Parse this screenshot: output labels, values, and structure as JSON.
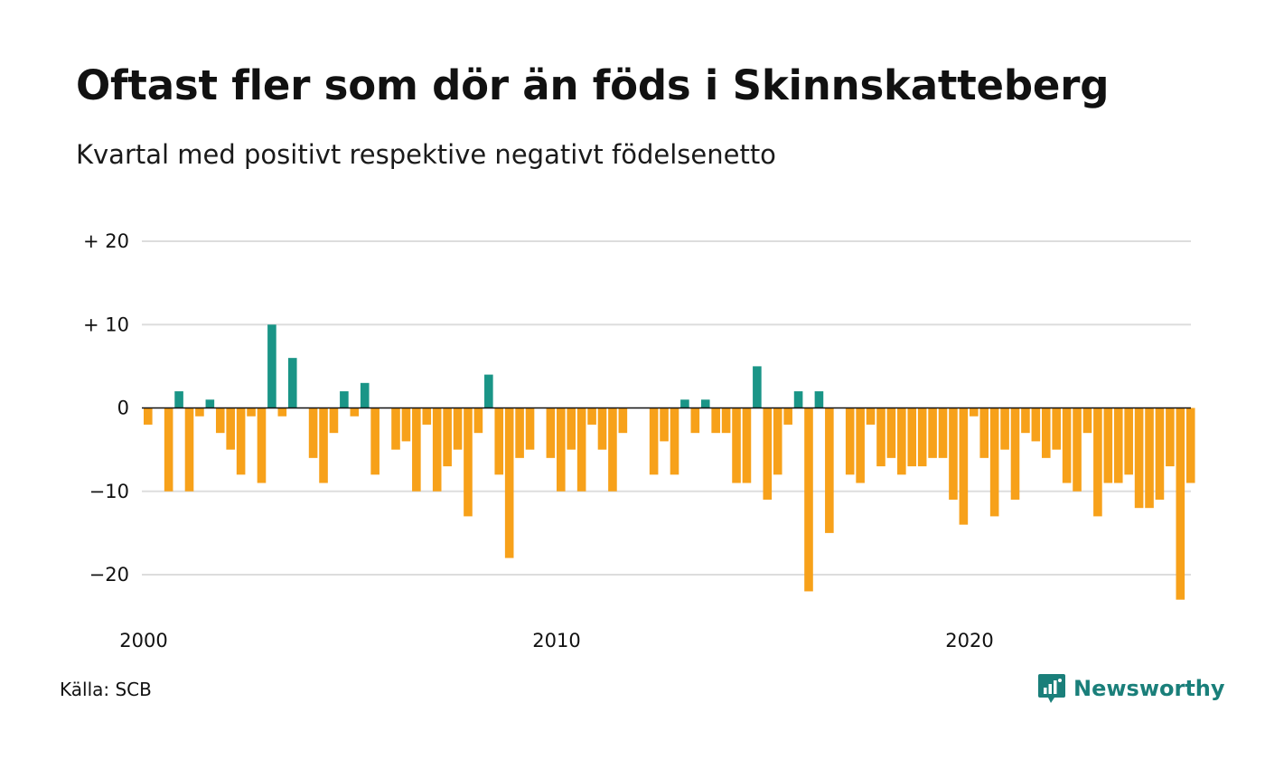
{
  "title": "Oftast fler som dör än föds i Skinnskatteberg",
  "subtitle": "Kvartal med positivt respektive negativt födelsenetto",
  "source": "Källa: SCB",
  "brand": {
    "name": "Newsworthy",
    "icon": "newsworthy-logo-icon"
  },
  "colors": {
    "positive": "#1a9587",
    "negative": "#f7a11a",
    "grid": "#dddddd",
    "zero": "#111111"
  },
  "chart_data": {
    "type": "bar",
    "x_start": 2000.0,
    "x_step": 0.25,
    "x_ticks": [
      {
        "value": 2000,
        "label": "2000"
      },
      {
        "value": 2010,
        "label": "2010"
      },
      {
        "value": 2020,
        "label": "2020"
      }
    ],
    "y_ticks": [
      {
        "value": 20,
        "label": "+ 20"
      },
      {
        "value": 10,
        "label": "+ 10"
      },
      {
        "value": 0,
        "label": "0"
      },
      {
        "value": -10,
        "label": "−10"
      },
      {
        "value": -20,
        "label": "−20"
      }
    ],
    "ylim": [
      -25,
      20
    ],
    "values": [
      -2,
      0,
      -10,
      2,
      -10,
      -1,
      1,
      -3,
      -5,
      -8,
      -1,
      -9,
      10,
      -1,
      6,
      0,
      -6,
      -9,
      -3,
      2,
      -1,
      3,
      -8,
      0,
      -5,
      -4,
      -10,
      -2,
      -10,
      -7,
      -5,
      -13,
      -3,
      4,
      -8,
      -18,
      -6,
      -5,
      0,
      -6,
      -10,
      -5,
      -10,
      -2,
      -5,
      -10,
      -3,
      0,
      0,
      -8,
      -4,
      -8,
      1,
      -3,
      1,
      -3,
      -3,
      -9,
      -9,
      5,
      -11,
      -8,
      -2,
      2,
      -22,
      2,
      -15,
      0,
      -8,
      -9,
      -2,
      -7,
      -6,
      -8,
      -7,
      -7,
      -6,
      -6,
      -11,
      -14,
      -1,
      -6,
      -13,
      -5,
      -11,
      -3,
      -4,
      -6,
      -5,
      -9,
      -10,
      -3,
      -13,
      -9,
      -9,
      -8,
      -12,
      -12,
      -11,
      -7,
      -23,
      -9
    ],
    "xlabel": "",
    "ylabel": "",
    "grid": true
  }
}
